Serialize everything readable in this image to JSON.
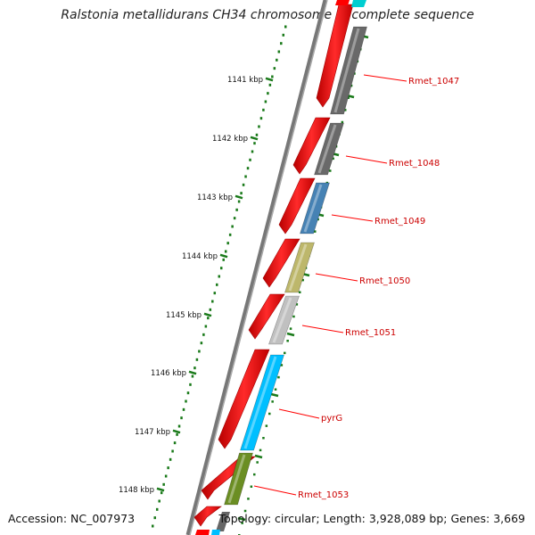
{
  "title": "Ralstonia metallidurans CH34 chromosome 1, complete sequence",
  "footer": {
    "accession_label": "Accession:",
    "accession": "NC_007973",
    "topology_label": "Topology:",
    "topology": "circular",
    "length_label": "Length:",
    "length": "3,928,089 bp",
    "genes_label": "Genes:",
    "genes": "3,669"
  },
  "ruler": {
    "unit": "kbp",
    "ticks": [
      {
        "label": "1141 kbp"
      },
      {
        "label": "1142 kbp"
      },
      {
        "label": "1143 kbp"
      },
      {
        "label": "1144 kbp"
      },
      {
        "label": "1145 kbp"
      },
      {
        "label": "1146 kbp"
      },
      {
        "label": "1147 kbp"
      },
      {
        "label": "1148 kbp"
      }
    ]
  },
  "genes": [
    {
      "name": "Rmet_1047",
      "color": "#696969"
    },
    {
      "name": "Rmet_1048",
      "color": "#696969"
    },
    {
      "name": "Rmet_1049",
      "color": "#4682b4"
    },
    {
      "name": "Rmet_1050",
      "color": "#bdb76b"
    },
    {
      "name": "Rmet_1051",
      "color": "#c0c0c0"
    },
    {
      "name": "pyrG",
      "color": "#00bfff"
    },
    {
      "name": "Rmet_1053",
      "color": "#6b8e23"
    }
  ],
  "colors": {
    "cds_strand": "#ff0000",
    "label_text": "#cc0000",
    "ruler": "#1a7a1a",
    "backbone": "#808080"
  }
}
